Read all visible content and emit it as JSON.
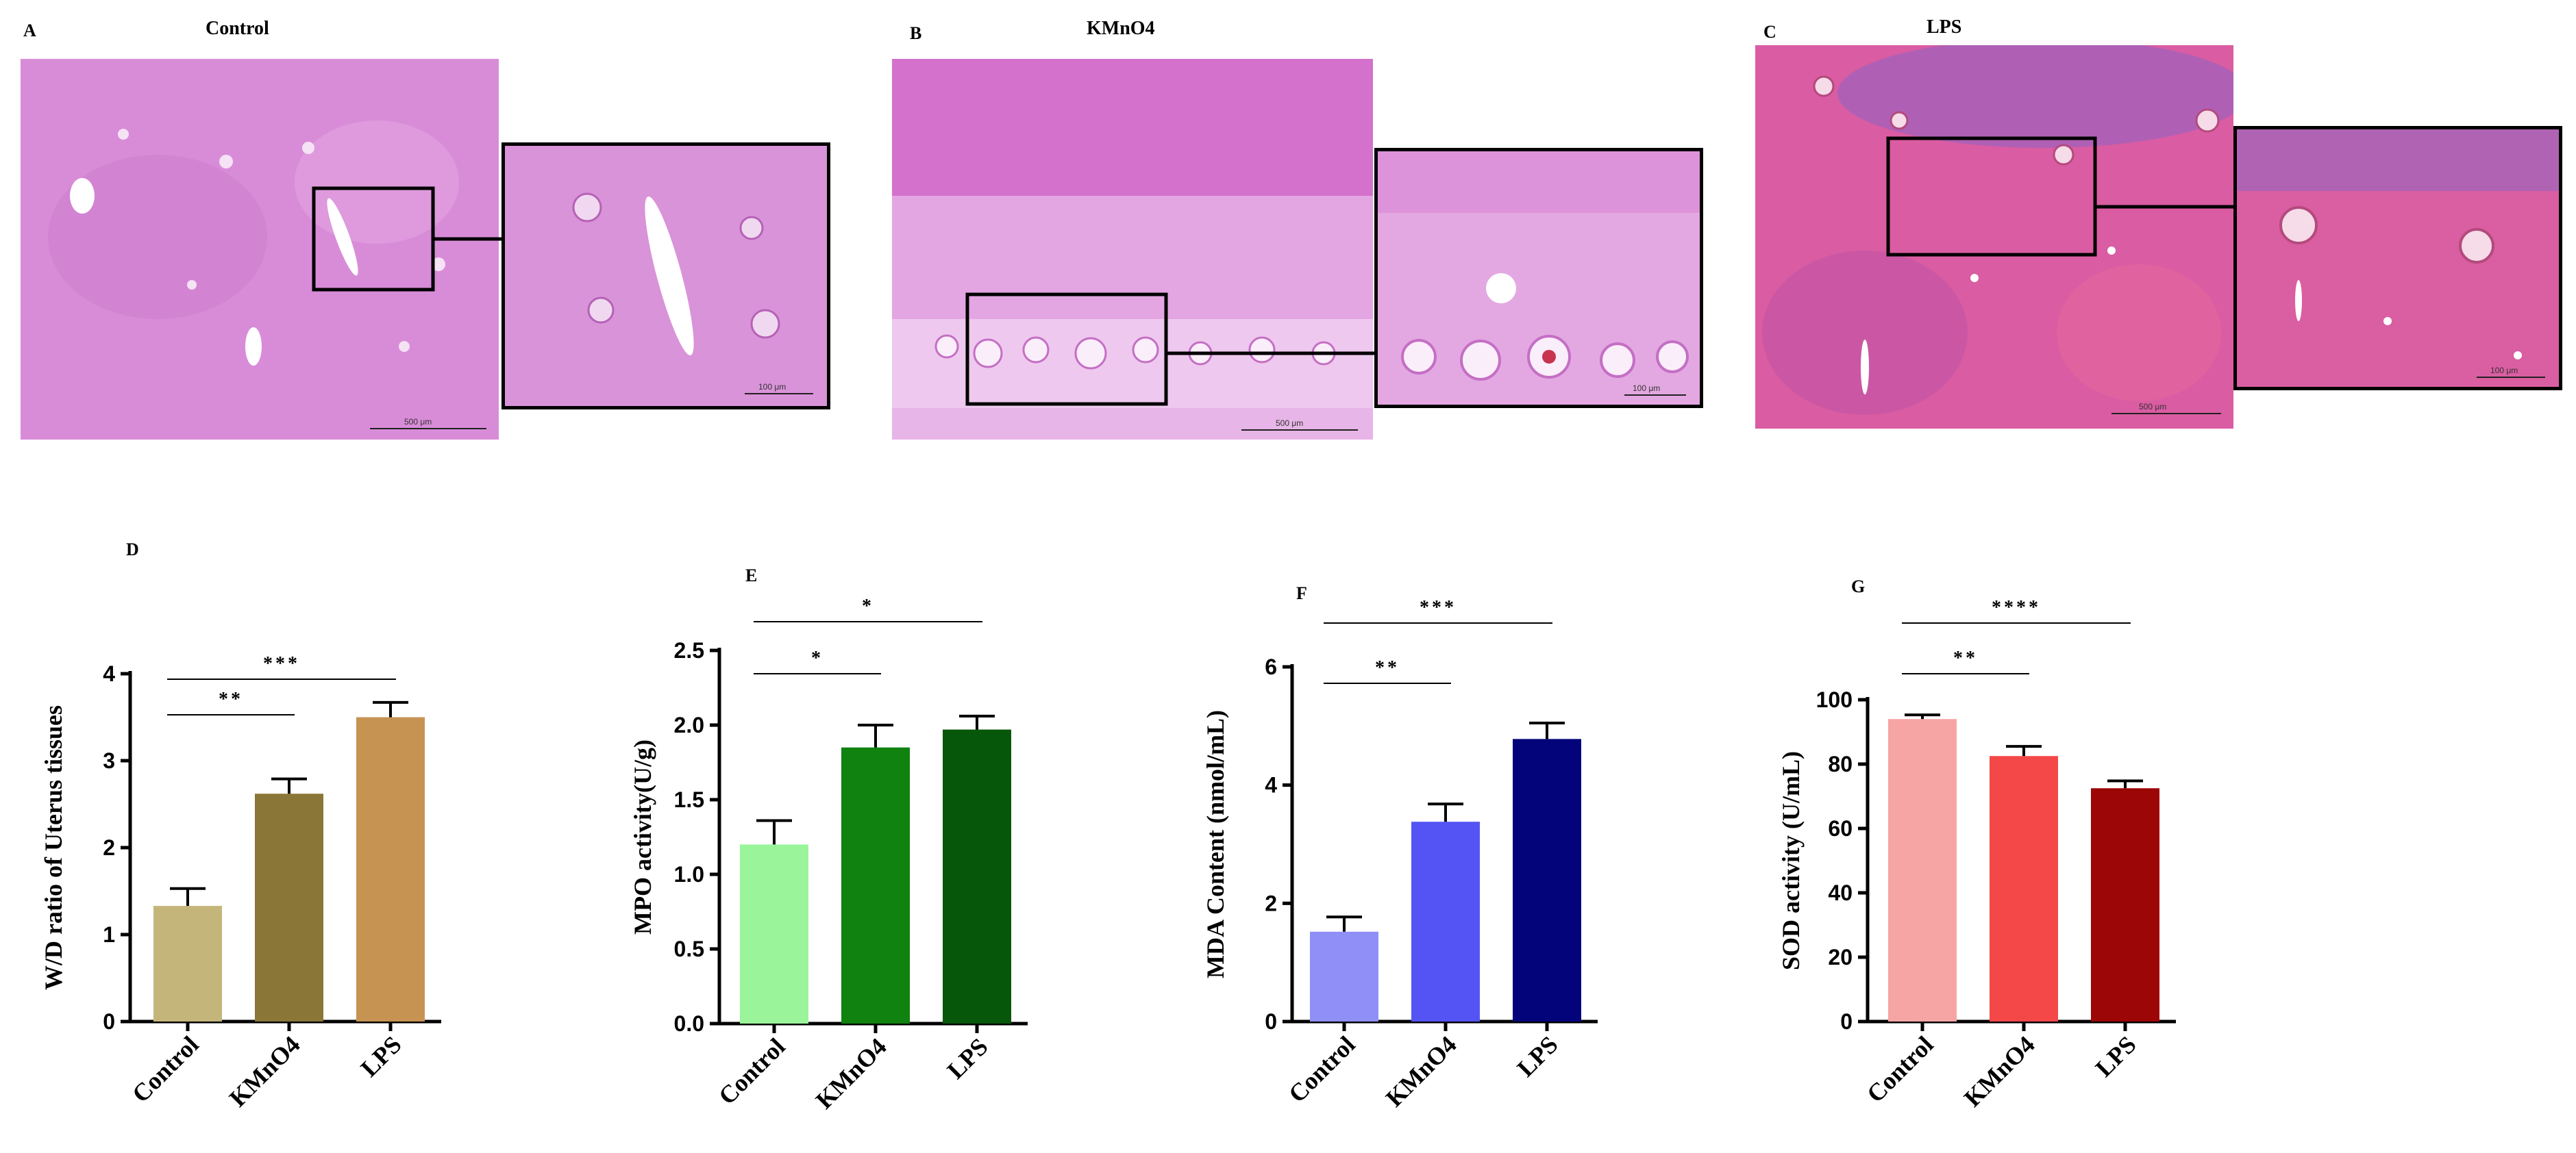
{
  "micrographs": [
    {
      "letter": "A",
      "title": "Control",
      "tissue_color": "#d78ad9",
      "scale_label": "500 μm",
      "inset_scale_label": "100 μm"
    },
    {
      "letter": "B",
      "title": "KMnO4",
      "tissue_color": "#dc86d6",
      "scale_label": "500 μm",
      "inset_scale_label": "100 μm"
    },
    {
      "letter": "C",
      "title": "LPS",
      "tissue_color": "#d9579f",
      "scale_label": "500 μm",
      "inset_scale_label": "100 μm"
    }
  ],
  "chart_data": [
    {
      "panel": "D",
      "type": "bar",
      "categories": [
        "Control",
        "KMnO4",
        "LPS"
      ],
      "values": [
        1.33,
        2.62,
        3.5
      ],
      "errors": [
        0.2,
        0.17,
        0.17
      ],
      "colors": [
        "#c4b67a",
        "#8a7636",
        "#c69352"
      ],
      "ylabel": "W/D ratio of Uterus tissues",
      "ylim": [
        0,
        4
      ],
      "yticks": [
        "0",
        "1",
        "2",
        "3",
        "4"
      ],
      "significance": [
        {
          "from": 0,
          "to": 1,
          "label": "**",
          "level": "low"
        },
        {
          "from": 0,
          "to": 2,
          "label": "***",
          "level": "high"
        }
      ]
    },
    {
      "panel": "E",
      "type": "bar",
      "categories": [
        "Control",
        "KMnO4",
        "LPS"
      ],
      "values": [
        1.2,
        1.85,
        1.97
      ],
      "errors": [
        0.16,
        0.15,
        0.09
      ],
      "colors": [
        "#9af59a",
        "#0f820f",
        "#07570b"
      ],
      "ylabel": "MPO activity(U/g)",
      "ylim": [
        0,
        2.5
      ],
      "yticks": [
        "0.0",
        "0.5",
        "1.0",
        "1.5",
        "2.0",
        "2.5"
      ],
      "significance": [
        {
          "from": 0,
          "to": 1,
          "label": "*",
          "level": "low"
        },
        {
          "from": 0,
          "to": 2,
          "label": "*",
          "level": "high"
        }
      ]
    },
    {
      "panel": "F",
      "type": "bar",
      "categories": [
        "Control",
        "KMnO4",
        "LPS"
      ],
      "values": [
        1.52,
        3.38,
        4.78
      ],
      "errors": [
        0.25,
        0.3,
        0.27
      ],
      "colors": [
        "#8f8ff7",
        "#5454f4",
        "#04047a"
      ],
      "ylabel": "MDA Content (nmol/mL)",
      "ylim": [
        0,
        6
      ],
      "yticks": [
        "0",
        "2",
        "4",
        "6"
      ],
      "significance": [
        {
          "from": 0,
          "to": 1,
          "label": "**",
          "level": "low"
        },
        {
          "from": 0,
          "to": 2,
          "label": "***",
          "level": "high"
        }
      ]
    },
    {
      "panel": "G",
      "type": "bar",
      "categories": [
        "Control",
        "KMnO4",
        "LPS"
      ],
      "values": [
        94,
        82.5,
        72.5
      ],
      "errors": [
        1.3,
        3.0,
        2.3
      ],
      "colors": [
        "#f7a4a4",
        "#f44747",
        "#9c0606"
      ],
      "ylabel": "SOD activity (U/mL)",
      "ylim": [
        0,
        100
      ],
      "yticks": [
        "0",
        "20",
        "40",
        "60",
        "80",
        "100"
      ],
      "significance": [
        {
          "from": 0,
          "to": 1,
          "label": "**",
          "level": "low"
        },
        {
          "from": 0,
          "to": 2,
          "label": "****",
          "level": "high"
        }
      ]
    }
  ]
}
